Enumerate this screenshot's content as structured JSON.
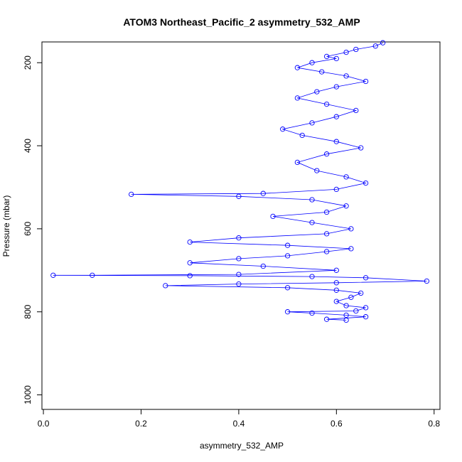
{
  "chart_data": {
    "type": "scatter",
    "title": "ATOM3 Northeast_Pacific_2 asymmetry_532_AMP",
    "xlabel": "asymmetry_532_AMP",
    "ylabel": "Pressure (mbar)",
    "xlim": [
      -0.003,
      0.812
    ],
    "ylim": [
      1035,
      150
    ],
    "y_reversed": true,
    "x_ticks": [
      "0.0",
      "0.2",
      "0.4",
      "0.6",
      "0.8"
    ],
    "y_ticks": [
      "200",
      "400",
      "600",
      "800",
      "1000"
    ],
    "marker": "open-circle",
    "connected": true,
    "color": "#0000ff",
    "series": [
      {
        "points": [
          [
            0.695,
            152
          ],
          [
            0.68,
            160
          ],
          [
            0.64,
            168
          ],
          [
            0.62,
            175
          ],
          [
            0.58,
            185
          ],
          [
            0.6,
            190
          ],
          [
            0.55,
            200
          ],
          [
            0.52,
            212
          ],
          [
            0.57,
            222
          ],
          [
            0.62,
            232
          ],
          [
            0.66,
            245
          ],
          [
            0.6,
            258
          ],
          [
            0.56,
            270
          ],
          [
            0.52,
            285
          ],
          [
            0.58,
            300
          ],
          [
            0.64,
            315
          ],
          [
            0.6,
            330
          ],
          [
            0.55,
            345
          ],
          [
            0.49,
            360
          ],
          [
            0.53,
            375
          ],
          [
            0.6,
            390
          ],
          [
            0.65,
            405
          ],
          [
            0.58,
            420
          ],
          [
            0.52,
            440
          ],
          [
            0.56,
            460
          ],
          [
            0.62,
            475
          ],
          [
            0.66,
            490
          ],
          [
            0.6,
            505
          ],
          [
            0.45,
            515
          ],
          [
            0.18,
            517
          ],
          [
            0.4,
            522
          ],
          [
            0.55,
            530
          ],
          [
            0.62,
            545
          ],
          [
            0.58,
            560
          ],
          [
            0.47,
            570
          ],
          [
            0.55,
            585
          ],
          [
            0.63,
            600
          ],
          [
            0.58,
            612
          ],
          [
            0.4,
            622
          ],
          [
            0.3,
            632
          ],
          [
            0.5,
            640
          ],
          [
            0.63,
            648
          ],
          [
            0.58,
            655
          ],
          [
            0.5,
            665
          ],
          [
            0.4,
            672
          ],
          [
            0.3,
            682
          ],
          [
            0.45,
            690
          ],
          [
            0.6,
            700
          ],
          [
            0.4,
            710
          ],
          [
            0.1,
            712
          ],
          [
            0.02,
            712
          ],
          [
            0.3,
            713
          ],
          [
            0.55,
            715
          ],
          [
            0.66,
            718
          ],
          [
            0.785,
            726
          ],
          [
            0.6,
            730
          ],
          [
            0.4,
            733
          ],
          [
            0.25,
            737
          ],
          [
            0.5,
            742
          ],
          [
            0.6,
            748
          ],
          [
            0.65,
            755
          ],
          [
            0.63,
            765
          ],
          [
            0.6,
            775
          ],
          [
            0.62,
            785
          ],
          [
            0.66,
            790
          ],
          [
            0.64,
            798
          ],
          [
            0.5,
            800
          ],
          [
            0.55,
            803
          ],
          [
            0.62,
            808
          ],
          [
            0.66,
            812
          ],
          [
            0.58,
            818
          ],
          [
            0.62,
            820
          ]
        ]
      }
    ]
  }
}
